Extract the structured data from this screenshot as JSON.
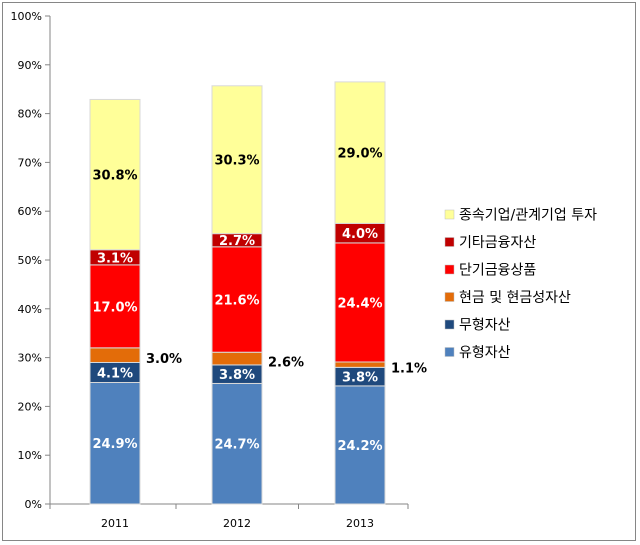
{
  "chart_data": {
    "type": "bar",
    "stacked": true,
    "categories": [
      "2011",
      "2012",
      "2013"
    ],
    "ylim": [
      0,
      100
    ],
    "y_ticks": [
      "0%",
      "10%",
      "20%",
      "30%",
      "40%",
      "50%",
      "60%",
      "70%",
      "80%",
      "90%",
      "100%"
    ],
    "grid": false,
    "legend_position": "right",
    "series": [
      {
        "name": "유형자산",
        "color": "#4F81BD",
        "values": [
          24.9,
          24.7,
          24.2
        ],
        "labels": [
          "24.9%",
          "24.7%",
          "24.2%"
        ],
        "label_color": "#FFFFFF",
        "label_position": "inside"
      },
      {
        "name": "무형자산",
        "color": "#1F497D",
        "values": [
          4.1,
          3.8,
          3.8
        ],
        "labels": [
          "4.1%",
          "3.8%",
          "3.8%"
        ],
        "label_color": "#FFFFFF",
        "label_position": "inside"
      },
      {
        "name": "현금 및 현금성자산",
        "color": "#E36C09",
        "values": [
          3.0,
          2.6,
          1.1
        ],
        "labels": [
          "3.0%",
          "2.6%",
          "1.1%"
        ],
        "label_color": "#000000",
        "label_position": "outside-right"
      },
      {
        "name": "단기금융상품",
        "color": "#FF0000",
        "values": [
          17.0,
          21.6,
          24.4
        ],
        "labels": [
          "17.0%",
          "21.6%",
          "24.4%"
        ],
        "label_color": "#FFFFFF",
        "label_position": "inside"
      },
      {
        "name": "기타금융자산",
        "color": "#C00000",
        "values": [
          3.1,
          2.7,
          4.0
        ],
        "labels": [
          "3.1%",
          "2.7%",
          "4.0%"
        ],
        "label_color": "#FFFFFF",
        "label_position": "inside"
      },
      {
        "name": "종속기업/관계기업 투자",
        "color": "#FFFF99",
        "values": [
          30.8,
          30.3,
          29.0
        ],
        "labels": [
          "30.8%",
          "30.3%",
          "29.0%"
        ],
        "label_color": "#000000",
        "label_position": "inside"
      }
    ]
  }
}
